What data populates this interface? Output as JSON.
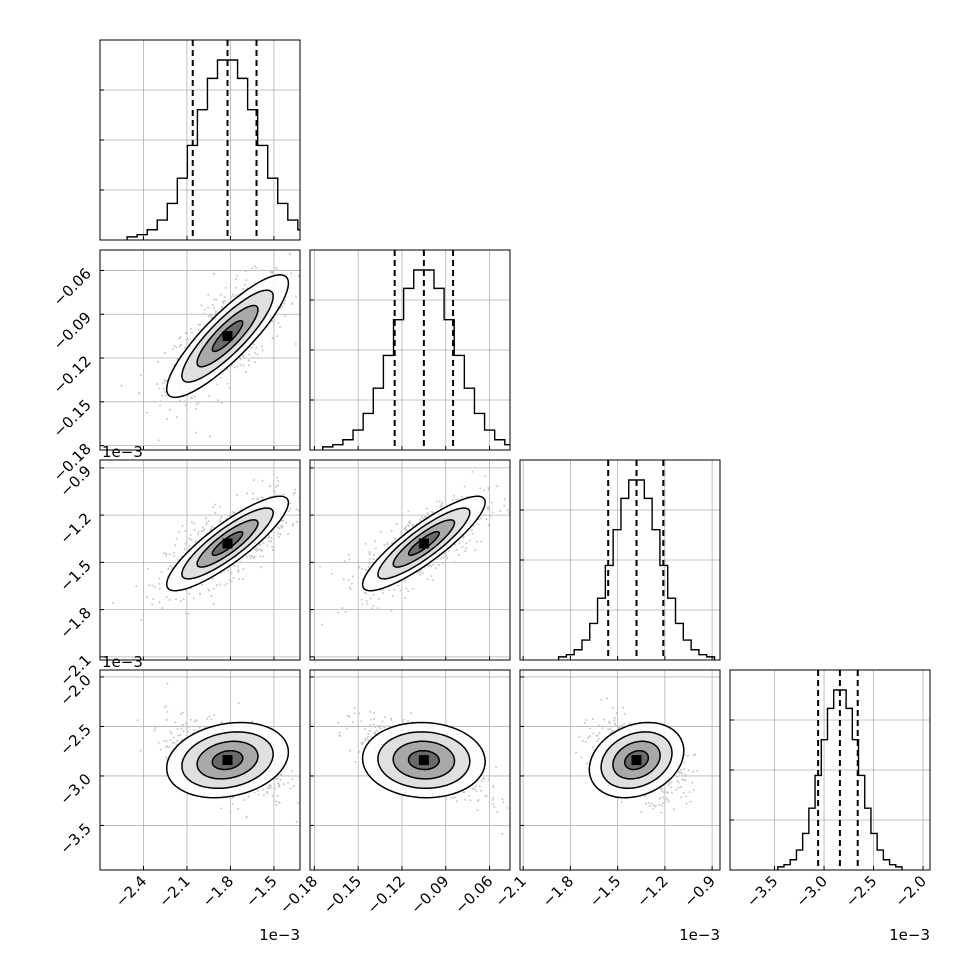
{
  "chart_data": {
    "type": "corner",
    "grid": true,
    "parameters": [
      {
        "range": [
          -2.7,
          -1.32
        ],
        "ticks": [
          -2.4,
          -2.1,
          -1.8,
          -1.5
        ],
        "tick_labels": [
          "−2.4",
          "−2.1",
          "−1.8",
          "−1.5"
        ],
        "offset_label": "1e−3",
        "mean": -1.82,
        "sd": 0.21,
        "quantiles": [
          -2.06,
          -1.82,
          -1.62
        ]
      },
      {
        "range": [
          -0.183,
          -0.046
        ],
        "ticks": [
          -0.18,
          -0.15,
          -0.12,
          -0.09,
          -0.06
        ],
        "tick_labels": [
          "−0.18",
          "−0.15",
          "−0.12",
          "−0.09",
          "−0.06"
        ],
        "offset_label": "",
        "mean": -0.105,
        "sd": 0.021,
        "quantiles": [
          -0.125,
          -0.105,
          -0.085
        ]
      },
      {
        "range": [
          -2.12,
          -0.85
        ],
        "ticks": [
          -2.1,
          -1.8,
          -1.5,
          -1.2,
          -0.9
        ],
        "tick_labels": [
          "−2.1",
          "−1.8",
          "−1.5",
          "−1.2",
          "−0.9"
        ],
        "offset_label": "1e−3",
        "mean": -1.38,
        "sd": 0.15,
        "quantiles": [
          -1.56,
          -1.38,
          -1.21
        ]
      },
      {
        "range": [
          -3.95,
          -1.93
        ],
        "ticks": [
          -3.5,
          -3.0,
          -2.5,
          -2.0
        ],
        "tick_labels": [
          "−3.5",
          "−3.0",
          "−2.5",
          "−2.0"
        ],
        "offset_label": "1e−3",
        "mean": -2.84,
        "sd": 0.19,
        "quantiles": [
          -3.06,
          -2.84,
          -2.66
        ]
      }
    ],
    "correlations": [
      [
        1.0,
        0.7,
        0.7,
        -0.45
      ],
      [
        0.7,
        1.0,
        0.72,
        -0.75
      ],
      [
        0.7,
        0.72,
        1.0,
        -0.4
      ],
      [
        -0.45,
        -0.75,
        -0.4,
        1.0
      ]
    ],
    "histogram_bins": 20,
    "contour_levels_sigma": [
      0.5,
      1.0,
      1.5,
      2.0
    ],
    "colors": {
      "density": "#000000",
      "lines": "#000000",
      "grid": "#b0b0b0",
      "points": "#c8c8c8"
    }
  }
}
